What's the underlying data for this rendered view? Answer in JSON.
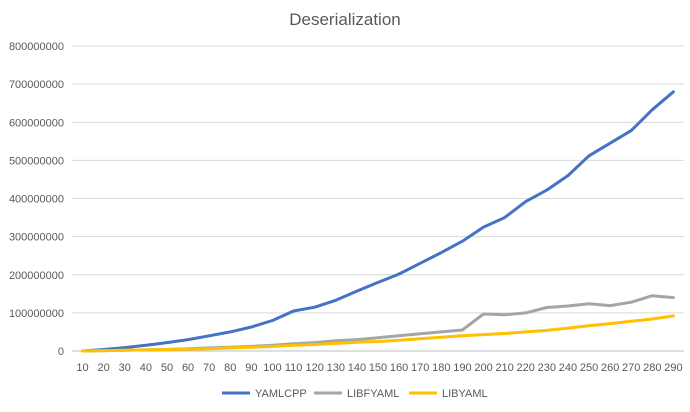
{
  "chart_data": {
    "type": "line",
    "title": "Deserialization",
    "xlabel": "",
    "ylabel": "",
    "x": [
      10,
      20,
      30,
      40,
      50,
      60,
      70,
      80,
      90,
      100,
      110,
      120,
      130,
      140,
      150,
      160,
      170,
      180,
      190,
      200,
      210,
      220,
      230,
      240,
      250,
      260,
      270,
      280,
      290
    ],
    "ylim": [
      0,
      800000000
    ],
    "yticks": [
      "0",
      "100000000",
      "200000000",
      "300000000",
      "400000000",
      "500000000",
      "600000000",
      "700000000",
      "800000000"
    ],
    "grid": true,
    "legend_position": "bottom",
    "series": [
      {
        "name": "YAMLCPP",
        "color": "#4472C4",
        "values": [
          0,
          4000000,
          9000000,
          15000000,
          22000000,
          30000000,
          40000000,
          50000000,
          63000000,
          80000000,
          105000000,
          115000000,
          133000000,
          157000000,
          180000000,
          202000000,
          230000000,
          258000000,
          288000000,
          325000000,
          350000000,
          392000000,
          422000000,
          460000000,
          512000000,
          545000000,
          578000000,
          633000000,
          680000000
        ]
      },
      {
        "name": "LIBFYAML",
        "color": "#A5A5A5",
        "values": [
          0,
          1000000,
          2000000,
          3000000,
          4000000,
          6000000,
          8000000,
          10000000,
          12000000,
          15000000,
          19000000,
          22000000,
          27000000,
          30000000,
          35000000,
          40000000,
          45000000,
          50000000,
          55000000,
          97000000,
          95000000,
          100000000,
          114000000,
          118000000,
          124000000,
          119000000,
          128000000,
          145000000,
          140000000
        ]
      },
      {
        "name": "LIBYAML",
        "color": "#FFC000",
        "values": [
          0,
          1000000,
          2000000,
          3000000,
          4000000,
          5000000,
          6000000,
          8000000,
          10000000,
          12000000,
          15000000,
          17000000,
          20000000,
          23000000,
          25000000,
          28000000,
          32000000,
          36000000,
          40000000,
          43000000,
          46000000,
          50000000,
          54000000,
          60000000,
          66000000,
          72000000,
          78000000,
          84000000,
          92000000
        ]
      }
    ]
  }
}
